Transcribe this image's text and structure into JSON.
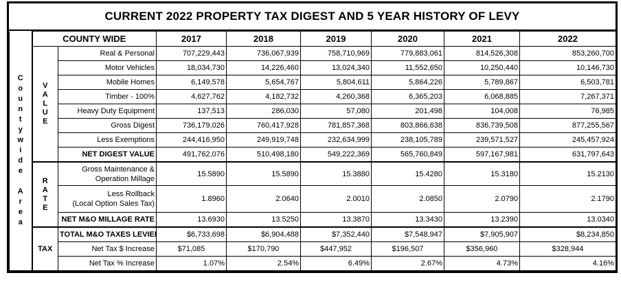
{
  "title": "CURRENT 2022 PROPERTY TAX DIGEST AND 5 YEAR HISTORY OF LEVY",
  "side_label": [
    "C",
    "o",
    "u",
    "n",
    "t",
    "y",
    "w",
    "i",
    "d",
    "e",
    "",
    "A",
    "r",
    "e",
    "a"
  ],
  "header": {
    "label": "COUNTY WIDE",
    "years": [
      "2017",
      "2018",
      "2019",
      "2020",
      "2021",
      "2022"
    ]
  },
  "groups": {
    "value": [
      "V",
      "A",
      "L",
      "U",
      "E"
    ],
    "rate": [
      "R",
      "A",
      "T",
      "E"
    ],
    "tax": "TAX"
  },
  "value_rows": [
    {
      "label": "Real & Personal",
      "values": [
        "707,229,443",
        "736,067,939",
        "758,710,969",
        "779,883,061",
        "814,526,308",
        "853,260,700"
      ]
    },
    {
      "label": "Motor Vehicles",
      "values": [
        "18,034,730",
        "14,226,460",
        "13,024,340",
        "11,552,650",
        "10,250,440",
        "10,146,730"
      ]
    },
    {
      "label": "Mobile Homes",
      "values": [
        "6,149,578",
        "5,654,767",
        "5,804,611",
        "5,864,226",
        "5,789,867",
        "6,503,781"
      ]
    },
    {
      "label": "Timber - 100%",
      "values": [
        "4,627,762",
        "4,182,732",
        "4,260,368",
        "6,365,203",
        "6,068,885",
        "7,267,371"
      ]
    },
    {
      "label": "Heavy Duty Equipment",
      "values": [
        "137,513",
        "286,030",
        "57,080",
        "201,498",
        "104,008",
        "76,985"
      ]
    },
    {
      "label": "Gross Digest",
      "values": [
        "736,179,026",
        "760,417,928",
        "781,857,368",
        "803,866,638",
        "836,739,508",
        "877,255,567"
      ]
    },
    {
      "label": "Less Exemptions",
      "values": [
        "244,416,950",
        "249,919,748",
        "232,634,999",
        "238,105,789",
        "239,571,527",
        "245,457,924"
      ]
    },
    {
      "label": "NET DIGEST VALUE",
      "bold": true,
      "values": [
        "491,762,076",
        "510,498,180",
        "549,222,369",
        "565,760,849",
        "597,167,981",
        "631,797,643"
      ]
    }
  ],
  "rate_rows": [
    {
      "label_line1": "Gross Maintenance &",
      "label_line2": "Operation Millage",
      "values": [
        "15.5890",
        "15.5890",
        "15.3880",
        "15.4280",
        "15.3180",
        "15.2130"
      ]
    },
    {
      "label_line1": "Less Rollback",
      "label_line2": "(Local Option Sales Tax)",
      "values": [
        "1.8960",
        "2.0640",
        "2.0010",
        "2.0850",
        "2.0790",
        "2.1790"
      ]
    },
    {
      "label": "NET M&O MILLAGE RATE",
      "bold": true,
      "values": [
        "13.6930",
        "13.5250",
        "13.3870",
        "13.3430",
        "13.2390",
        "13.0340"
      ]
    }
  ],
  "tax_rows": [
    {
      "label": "TOTAL M&O TAXES LEVIED",
      "bold": true,
      "values": [
        "$6,733,698",
        "$6,904,488",
        "$7,352,440",
        "$7,548,947",
        "$7,905,907",
        "$8,234,850"
      ]
    },
    {
      "label": "Net Tax $ Increase",
      "values": [
        "$71,085",
        "$170,790",
        "$447,952",
        "$196,507",
        "$356,960",
        "$328,944"
      ]
    },
    {
      "label": "Net Tax % Increase",
      "values": [
        "1.07%",
        "2.54%",
        "6.49%",
        "2.67%",
        "4.73%",
        "4.16%"
      ]
    }
  ]
}
